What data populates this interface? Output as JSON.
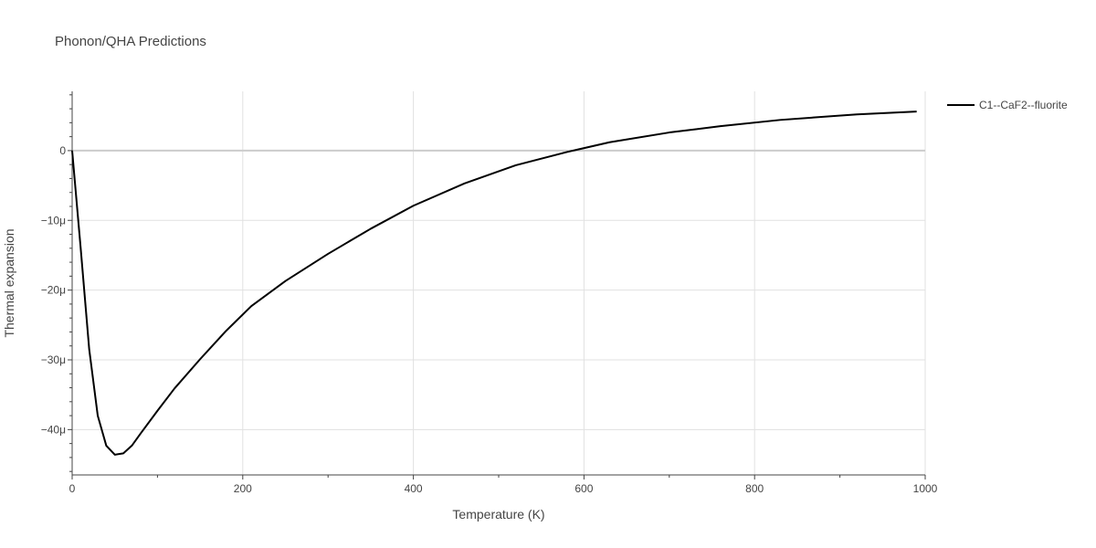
{
  "chart_data": {
    "type": "line",
    "title": "Phonon/QHA Predictions",
    "xlabel": "Temperature (K)",
    "ylabel": "Thermal expansion",
    "xlim": [
      0,
      1000
    ],
    "ylim": [
      -46.5,
      8.5
    ],
    "y_unit_suffix": "μ",
    "x_ticks": [
      0,
      200,
      400,
      600,
      800,
      1000
    ],
    "x_tick_labels": [
      "0",
      "200",
      "400",
      "600",
      "800",
      "1000"
    ],
    "y_ticks": [
      0,
      -10,
      -20,
      -30,
      -40
    ],
    "y_tick_labels": [
      "0",
      "−10μ",
      "−20μ",
      "−30μ",
      "−40μ"
    ],
    "grid": true,
    "legend_position": "top-right",
    "series": [
      {
        "name": "C1--CaF2--fluorite",
        "color": "#000000",
        "x": [
          0,
          10,
          20,
          30,
          40,
          50,
          60,
          70,
          80,
          100,
          120,
          150,
          180,
          210,
          250,
          300,
          350,
          400,
          460,
          520,
          580,
          630,
          700,
          760,
          830,
          920,
          990
        ],
        "y": [
          0,
          -14,
          -28.5,
          -38,
          -42.3,
          -43.6,
          -43.4,
          -42.3,
          -40.6,
          -37.3,
          -34.1,
          -29.9,
          -25.9,
          -22.3,
          -18.7,
          -14.8,
          -11.2,
          -7.9,
          -4.7,
          -2.1,
          -0.2,
          1.2,
          2.6,
          3.5,
          4.4,
          5.2,
          5.6
        ]
      }
    ]
  }
}
